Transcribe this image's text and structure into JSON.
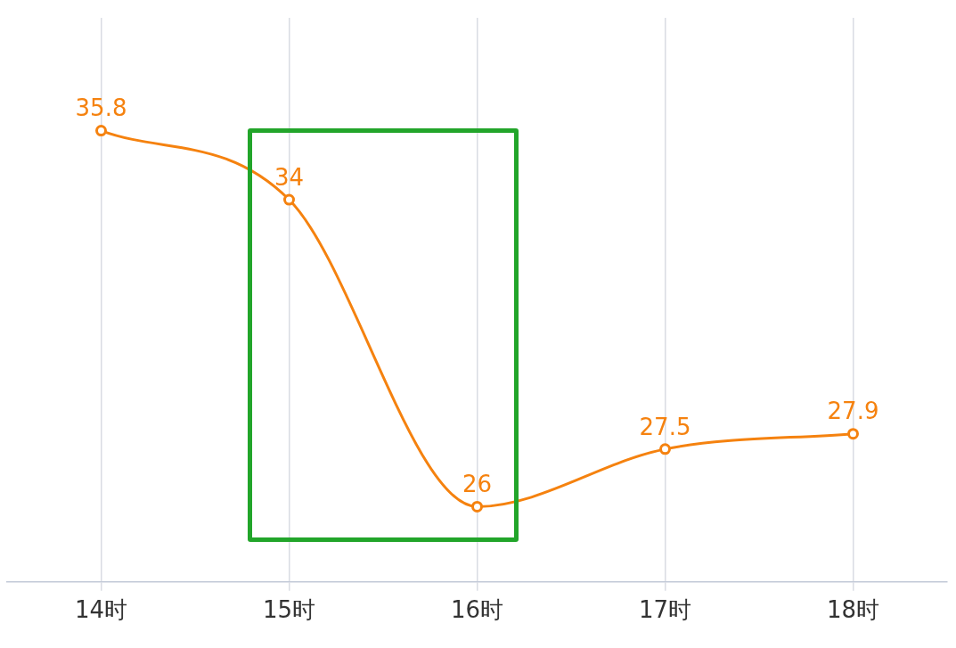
{
  "chart_data": {
    "type": "line",
    "categories": [
      "14时",
      "15时",
      "16时",
      "17时",
      "18时"
    ],
    "series": [
      {
        "color": "#f5820f",
        "values": [
          35.8,
          34,
          26,
          27.5,
          27.9
        ]
      }
    ],
    "data_labels": true,
    "marker": "circle",
    "grid": "x",
    "legend": false,
    "tick_labels": "x"
  }
}
